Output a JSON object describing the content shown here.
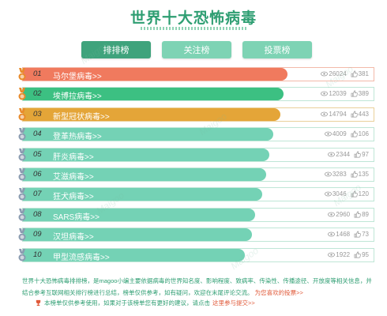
{
  "title": "世界十大恐怖病毒",
  "tabs": [
    {
      "label": "排排榜",
      "active": true
    },
    {
      "label": "关注榜",
      "active": false
    },
    {
      "label": "投票榜",
      "active": false
    }
  ],
  "items": [
    {
      "rank": "01",
      "name": "马尔堡病毒>>",
      "views": "26024",
      "likes": "381",
      "bar_percent": 75,
      "color": "#f07a5e"
    },
    {
      "rank": "02",
      "name": "埃博拉病毒>>",
      "views": "12039",
      "likes": "389",
      "bar_percent": 74,
      "color": "#3cc082"
    },
    {
      "rank": "03",
      "name": "新型冠状病毒>>",
      "views": "14794",
      "likes": "443",
      "bar_percent": 73,
      "color": "#e4a538"
    },
    {
      "rank": "04",
      "name": "登革热病毒>>",
      "views": "4009",
      "likes": "106",
      "bar_percent": 71,
      "color": "#74d2b5"
    },
    {
      "rank": "05",
      "name": "肝炎病毒>>",
      "views": "2344",
      "likes": "97",
      "bar_percent": 70,
      "color": "#74d2b5"
    },
    {
      "rank": "06",
      "name": "艾滋病毒>>",
      "views": "3283",
      "likes": "135",
      "bar_percent": 69,
      "color": "#74d2b5"
    },
    {
      "rank": "07",
      "name": "狂犬病毒>>",
      "views": "3046",
      "likes": "120",
      "bar_percent": 68,
      "color": "#74d2b5"
    },
    {
      "rank": "08",
      "name": "SARS病毒>>",
      "views": "2960",
      "likes": "89",
      "bar_percent": 66,
      "color": "#74d2b5"
    },
    {
      "rank": "09",
      "name": "汉坦病毒>>",
      "views": "1468",
      "likes": "73",
      "bar_percent": 65,
      "color": "#74d2b5"
    },
    {
      "rank": "10",
      "name": "甲型流感病毒>>",
      "views": "1922",
      "likes": "95",
      "bar_percent": 63,
      "color": "#74d2b5"
    }
  ],
  "description": "世界十大恐怖病毒排排榜，是magoo小编主要依据病毒的世界知名度、影响程度、致病率、传染性、传播途径、开放度等相关信息，并结合参考互联网相关排行榜进行总结，榜单仅供参考，如有疑问，欢迎在末尾评论交流。",
  "description_more": "为您喜欢的投票>>",
  "note": "本榜单仅供参考使用，如果对于该榜单您有更好的建议，请点击",
  "note_link": "这里参与提交>>",
  "watermark": "Maigoo"
}
